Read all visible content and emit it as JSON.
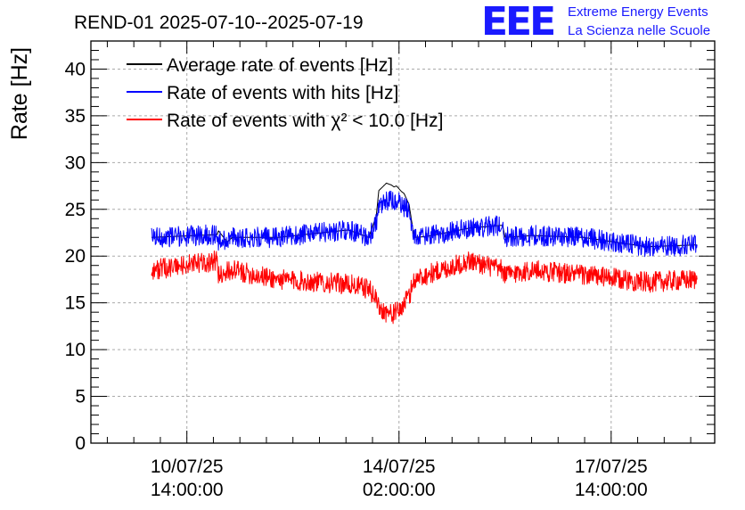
{
  "header": {
    "logo_text": "EEE",
    "logo_line1": "Extreme Energy Events",
    "logo_line2": "La Scienza nelle Scuole"
  },
  "chart_data": {
    "type": "line",
    "title": "REND-01 2025-07-10--2025-07-19",
    "xlabel": "",
    "ylabel": "Rate [Hz]",
    "ylim": [
      0,
      43
    ],
    "yticks": [
      0,
      5,
      10,
      15,
      20,
      25,
      30,
      35,
      40
    ],
    "x_unit": "hours since 2025-07-09 00:00",
    "xlim": [
      0,
      247
    ],
    "x_ticks": [
      {
        "x": 38,
        "line1": "10/07/25",
        "line2": "14:00:00"
      },
      {
        "x": 122,
        "line1": "14/07/25",
        "line2": "02:00:00"
      },
      {
        "x": 206,
        "line1": "17/07/25",
        "line2": "14:00:00"
      }
    ],
    "grid": true,
    "legend_position": "top-left",
    "series": [
      {
        "name": "Average rate of events [Hz]",
        "color": "#000000",
        "x": [
          24,
          50,
          50.5,
          54,
          56,
          74,
          102,
          110,
          113,
          114,
          117,
          119,
          120,
          121,
          122,
          123,
          124,
          126,
          128,
          133,
          150,
          163,
          164,
          175,
          195,
          220,
          240
        ],
        "values": [
          22.0,
          22.3,
          22.7,
          21.5,
          22.0,
          22.0,
          22.8,
          22.0,
          24.3,
          27.0,
          27.8,
          27.6,
          27.4,
          27.5,
          27.2,
          26.9,
          26.7,
          25.5,
          22.0,
          22.1,
          23.0,
          23.3,
          22.0,
          22.2,
          22.0,
          21.0,
          21.2
        ]
      },
      {
        "name": "Rate of events with hits [Hz]",
        "color": "#0000ff",
        "x": [
          24,
          50,
          50.5,
          56,
          74,
          102,
          110,
          113,
          114,
          117,
          119,
          120,
          121,
          122,
          123,
          124,
          126,
          128,
          133,
          150,
          163,
          164,
          175,
          195,
          220,
          240
        ],
        "values": [
          22.0,
          22.3,
          21.5,
          22.0,
          22.0,
          22.8,
          22.0,
          23.5,
          25.0,
          25.8,
          26.0,
          25.8,
          25.6,
          25.7,
          25.4,
          25.2,
          25.0,
          22.0,
          22.1,
          23.0,
          23.3,
          22.0,
          22.2,
          22.0,
          21.0,
          21.2
        ]
      },
      {
        "name": "Rate of events with χ² < 10.0 [Hz]",
        "color": "#ff0000",
        "x": [
          24,
          50,
          50.5,
          56,
          74,
          102,
          110,
          113,
          114,
          117,
          119,
          120,
          121,
          122,
          123,
          124,
          126,
          128,
          133,
          150,
          163,
          164,
          175,
          195,
          220,
          240
        ],
        "values": [
          18.5,
          19.5,
          18.0,
          18.5,
          17.5,
          17.0,
          16.5,
          15.5,
          14.5,
          14.0,
          13.8,
          13.9,
          14.0,
          14.1,
          14.5,
          15.0,
          15.6,
          17.5,
          18.0,
          19.5,
          18.5,
          18.0,
          18.5,
          18.0,
          17.2,
          17.5
        ]
      }
    ]
  }
}
